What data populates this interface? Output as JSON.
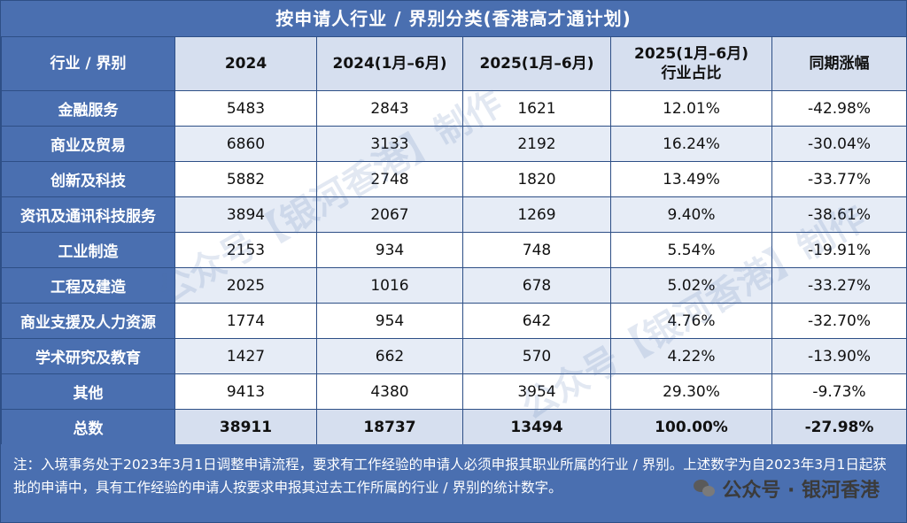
{
  "title": "按申请人行业 / 界别分类(香港高才通计划)",
  "headers": [
    "行业 / 界别",
    "2024",
    "2024(1月–6月)",
    "2025(1月–6月)",
    "2025(1月–6月)\n行业占比",
    "同期涨幅"
  ],
  "rows": [
    {
      "industry": "金融服务",
      "y2024": "5483",
      "h1_2024": "2843",
      "h1_2025": "1621",
      "share": "12.01%",
      "change": "-42.98%"
    },
    {
      "industry": "商业及贸易",
      "y2024": "6860",
      "h1_2024": "3133",
      "h1_2025": "2192",
      "share": "16.24%",
      "change": "-30.04%"
    },
    {
      "industry": "创新及科技",
      "y2024": "5882",
      "h1_2024": "2748",
      "h1_2025": "1820",
      "share": "13.49%",
      "change": "-33.77%"
    },
    {
      "industry": "资讯及通讯科技服务",
      "y2024": "3894",
      "h1_2024": "2067",
      "h1_2025": "1269",
      "share": "9.40%",
      "change": "-38.61%"
    },
    {
      "industry": "工业制造",
      "y2024": "2153",
      "h1_2024": "934",
      "h1_2025": "748",
      "share": "5.54%",
      "change": "-19.91%"
    },
    {
      "industry": "工程及建造",
      "y2024": "2025",
      "h1_2024": "1016",
      "h1_2025": "678",
      "share": "5.02%",
      "change": "-33.27%"
    },
    {
      "industry": "商业支援及人力资源",
      "y2024": "1774",
      "h1_2024": "954",
      "h1_2025": "642",
      "share": "4.76%",
      "change": "-32.70%"
    },
    {
      "industry": "学术研究及教育",
      "y2024": "1427",
      "h1_2024": "662",
      "h1_2025": "570",
      "share": "4.22%",
      "change": "-13.90%"
    },
    {
      "industry": "其他",
      "y2024": "9413",
      "h1_2024": "4380",
      "h1_2025": "3954",
      "share": "29.30%",
      "change": "-9.73%"
    }
  ],
  "total": {
    "industry": "总数",
    "y2024": "38911",
    "h1_2024": "18737",
    "h1_2025": "13494",
    "share": "100.00%",
    "change": "-27.98%"
  },
  "note": "注：入境事务处于2023年3月1日调整申请流程，要求有工作经验的申请人必须申报其职业所属的行业 / 界别。上述数字为自2023年3月1日起获批的申请中，具有工作经验的申请人按要求申报其过去工作所属的行业 / 界别的统计数字。",
  "watermark": "公众号【银河香港】制作",
  "badge": {
    "label": "公众号 · 银河香港",
    "icon": "wechat-icon"
  },
  "colors": {
    "header_blue": "#4a6fb0",
    "light_blue": "#d6dfef",
    "row_alt": "#e6ecf6",
    "border": "#2e4f86"
  }
}
